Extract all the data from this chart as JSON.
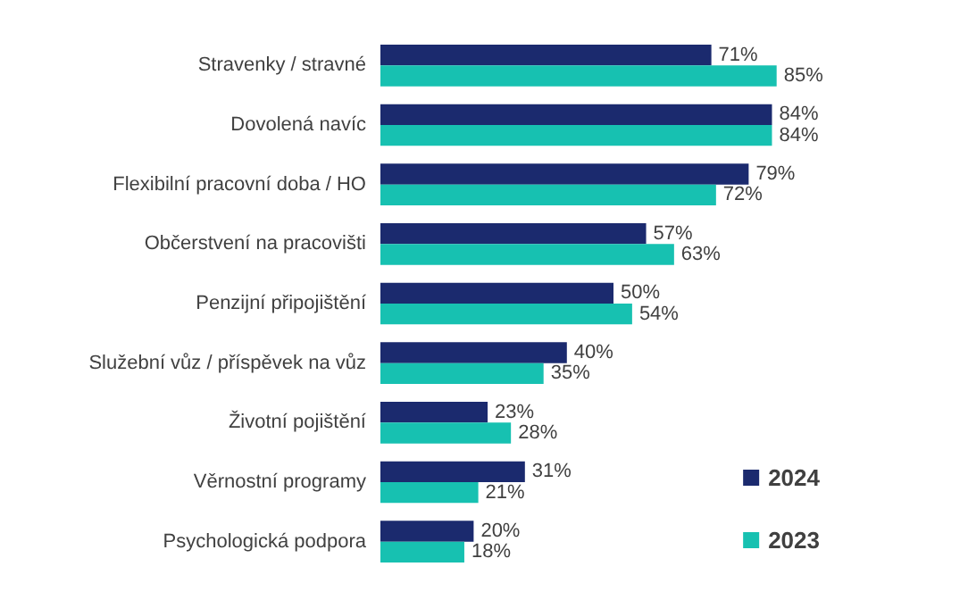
{
  "chart_data": {
    "type": "bar",
    "orientation": "horizontal",
    "categories": [
      "Stravenky / stravné",
      "Dovolená navíc",
      "Flexibilní pracovní doba / HO",
      "Občerstvení na pracovišti",
      "Penzijní připojištění",
      "Služební vůz / příspěvek na vůz",
      "Životní pojištění",
      "Věrnostní programy",
      "Psychologická podpora"
    ],
    "series": [
      {
        "name": "2024",
        "color": "#1b2a6e",
        "values": [
          71,
          84,
          79,
          57,
          50,
          40,
          23,
          31,
          20
        ],
        "value_labels": [
          "71%",
          "84%",
          "79%",
          "57%",
          "50%",
          "40%",
          "23%",
          "31%",
          "20%"
        ]
      },
      {
        "name": "2023",
        "color": "#17c1b1",
        "values": [
          85,
          84,
          72,
          63,
          54,
          35,
          28,
          21,
          18
        ],
        "value_labels": [
          "85%",
          "84%",
          "72%",
          "63%",
          "54%",
          "35%",
          "28%",
          "21%",
          "18%"
        ]
      }
    ],
    "legend": "bottom right",
    "grid": false
  }
}
